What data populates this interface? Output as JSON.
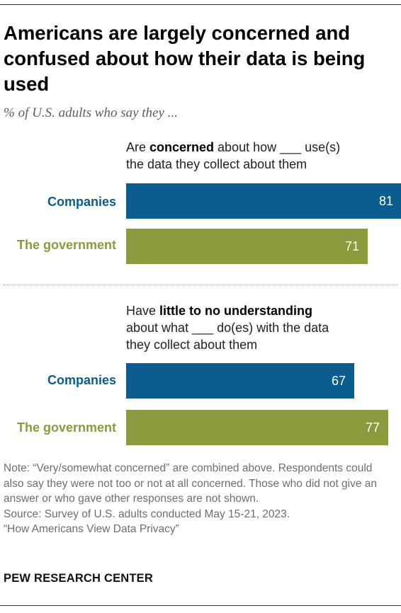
{
  "title": "Americans are largely concerned and confused about how their data is being used",
  "subtitle": "% of U.S. adults who say they ...",
  "colors": {
    "companies": "#0b5d8f",
    "government": "#8c9a3e"
  },
  "chart_data": [
    {
      "type": "bar",
      "orientation": "horizontal",
      "question_parts": [
        "Are ",
        "concerned",
        " about how ___ use(s)",
        "the data they collect about them"
      ],
      "categories": [
        "Companies",
        "The government"
      ],
      "values": [
        81,
        71
      ],
      "xlim": [
        0,
        100
      ]
    },
    {
      "type": "bar",
      "orientation": "horizontal",
      "question_parts": [
        "Have ",
        "little to no understanding",
        "about what ___ do(es) with the data",
        "they collect about them"
      ],
      "categories": [
        "Companies",
        "The government"
      ],
      "values": [
        67,
        77
      ],
      "xlim": [
        0,
        100
      ]
    }
  ],
  "notes": {
    "note": "Note: “Very/somewhat concerned” are combined above. Respondents could also say they were not too or not at all concerned. Those who did not give an answer or who gave other responses are not shown.",
    "source": "Source: Survey of U.S. adults conducted May 15-21, 2023.",
    "report": "“How Americans View Data Privacy”"
  },
  "brand": "PEW RESEARCH CENTER"
}
